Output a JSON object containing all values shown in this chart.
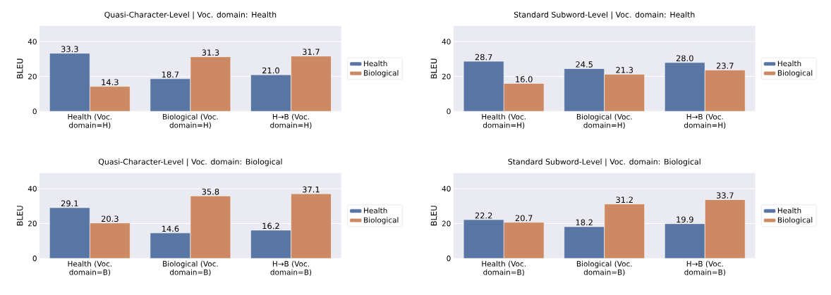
{
  "chart_data": [
    {
      "type": "bar",
      "title": "Quasi-Character-Level | Voc. domain: Health",
      "ylabel": "BLEU",
      "categories": [
        "Health (Voc. domain=H)",
        "Biological (Voc. domain=H)",
        "H→B (Voc. domain=H)"
      ],
      "series": [
        {
          "name": "Health",
          "color": "#5975a4",
          "values": [
            33.3,
            18.7,
            21.0
          ],
          "value_labels": [
            "33.3",
            "18.7",
            "21.0"
          ]
        },
        {
          "name": "Biological",
          "color": "#cc8963",
          "values": [
            14.3,
            31.3,
            31.7
          ],
          "value_labels": [
            "14.3",
            "31.3",
            "31.7"
          ]
        }
      ],
      "ylim": [
        0,
        49
      ],
      "yticks": [
        0,
        20,
        40
      ],
      "grid": "y",
      "legend": "right"
    },
    {
      "type": "bar",
      "title": "Standard Subword-Level | Voc. domain: Health",
      "ylabel": "BLEU",
      "categories": [
        "Health (Voc. domain=H)",
        "Biological (Voc. domain=H)",
        "H→B (Voc. domain=H)"
      ],
      "series": [
        {
          "name": "Health",
          "color": "#5975a4",
          "values": [
            28.7,
            24.5,
            28.0
          ],
          "value_labels": [
            "28.7",
            "24.5",
            "28.0"
          ]
        },
        {
          "name": "Biological",
          "color": "#cc8963",
          "values": [
            16.0,
            21.3,
            23.7
          ],
          "value_labels": [
            "16.0",
            "21.3",
            "23.7"
          ]
        }
      ],
      "ylim": [
        0,
        49
      ],
      "yticks": [
        0,
        20,
        40
      ],
      "grid": "y",
      "legend": "right"
    },
    {
      "type": "bar",
      "title": "Quasi-Character-Level | Voc. domain: Biological",
      "ylabel": "BLEU",
      "categories": [
        "Health (Voc. domain=B)",
        "Biological (Voc. domain=B)",
        "H→B (Voc. domain=B)"
      ],
      "series": [
        {
          "name": "Health",
          "color": "#5975a4",
          "values": [
            29.1,
            14.6,
            16.2
          ],
          "value_labels": [
            "29.1",
            "14.6",
            "16.2"
          ]
        },
        {
          "name": "Biological",
          "color": "#cc8963",
          "values": [
            20.3,
            35.8,
            37.1
          ],
          "value_labels": [
            "20.3",
            "35.8",
            "37.1"
          ]
        }
      ],
      "ylim": [
        0,
        49
      ],
      "yticks": [
        0,
        20,
        40
      ],
      "grid": "y",
      "legend": "right"
    },
    {
      "type": "bar",
      "title": "Standard Subword-Level | Voc. domain: Biological",
      "ylabel": "BLEU",
      "categories": [
        "Health (Voc. domain=B)",
        "Biological (Voc. domain=B)",
        "H→B (Voc. domain=B)"
      ],
      "series": [
        {
          "name": "Health",
          "color": "#5975a4",
          "values": [
            22.2,
            18.2,
            19.9
          ],
          "value_labels": [
            "22.2",
            "18.2",
            "19.9"
          ]
        },
        {
          "name": "Biological",
          "color": "#cc8963",
          "values": [
            20.7,
            31.2,
            33.7
          ],
          "value_labels": [
            "20.7",
            "31.2",
            "33.7"
          ]
        }
      ],
      "ylim": [
        0,
        49
      ],
      "yticks": [
        0,
        20,
        40
      ],
      "grid": "y",
      "legend": "right"
    }
  ]
}
